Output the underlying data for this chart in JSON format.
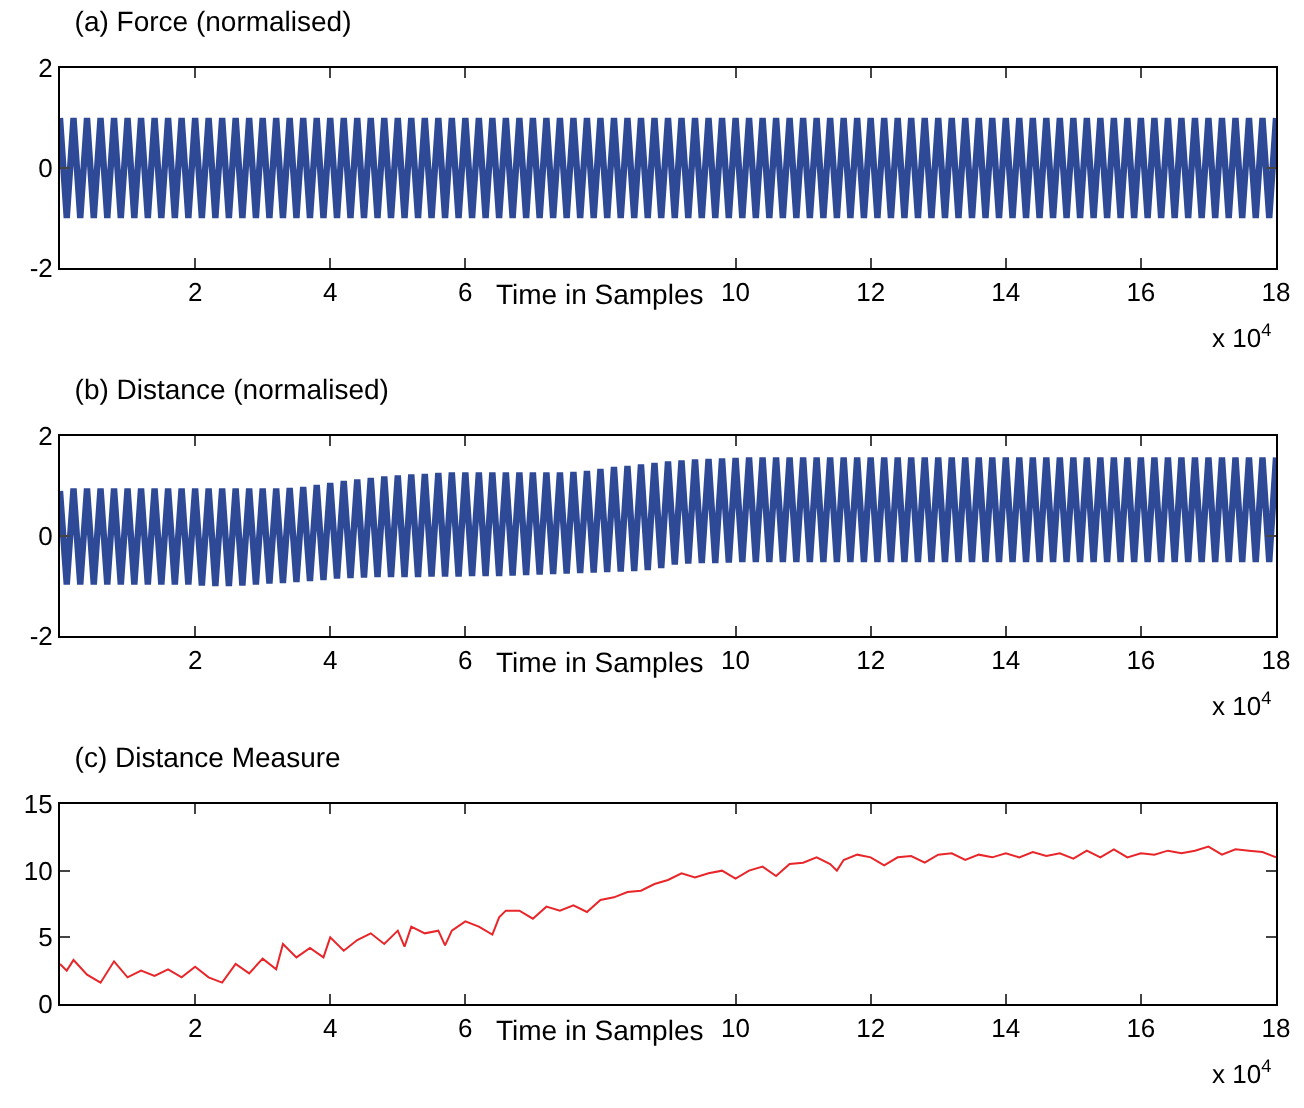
{
  "chart_data": [
    {
      "type": "line",
      "title": "(a) Force (normalised)",
      "xlabel": "Time in Samples",
      "xlim": [
        0,
        18
      ],
      "ylim": [
        -2,
        2
      ],
      "yticks": [
        -2,
        0,
        2
      ],
      "xticks": [
        2,
        4,
        6,
        10,
        12,
        14,
        16,
        18
      ],
      "annotations": [
        "x 10$^{4}$"
      ],
      "x": [
        0,
        0.1,
        0.2,
        0.3,
        0.4,
        0.5,
        0.6,
        0.7,
        0.8,
        0.9,
        1,
        1.1,
        1.2,
        1.3,
        1.4,
        1.5,
        1.6,
        1.7,
        1.8,
        1.9,
        2,
        2.1,
        2.2,
        2.3,
        2.4,
        2.5,
        2.6,
        2.7,
        2.8,
        2.9,
        3,
        3.1,
        3.2,
        3.3,
        3.4,
        3.5,
        3.6,
        3.7,
        3.8,
        3.9,
        4,
        4.1,
        4.2,
        4.3,
        4.4,
        4.5,
        4.6,
        4.7,
        4.8,
        4.9,
        5,
        5.1,
        5.2,
        5.3,
        5.4,
        5.5,
        5.6,
        5.7,
        5.8,
        5.9,
        6,
        6.1,
        6.2,
        6.3,
        6.4,
        6.5,
        6.6,
        6.7,
        6.8,
        6.9,
        7,
        7.1,
        7.2,
        7.3,
        7.4,
        7.5,
        7.6,
        7.7,
        7.8,
        7.9,
        8,
        8.1,
        8.2,
        8.3,
        8.4,
        8.5,
        8.6,
        8.7,
        8.8,
        8.9,
        9,
        9.1,
        9.2,
        9.3,
        9.4,
        9.5,
        9.6,
        9.7,
        9.8,
        9.9,
        10,
        10.1,
        10.2,
        10.3,
        10.4,
        10.5,
        10.6,
        10.7,
        10.8,
        10.9,
        11,
        11.1,
        11.2,
        11.3,
        11.4,
        11.5,
        11.6,
        11.7,
        11.8,
        11.9,
        12,
        12.1,
        12.2,
        12.3,
        12.4,
        12.5,
        12.6,
        12.7,
        12.8,
        12.9,
        13,
        13.1,
        13.2,
        13.3,
        13.4,
        13.5,
        13.6,
        13.7,
        13.8,
        13.9,
        14,
        14.1,
        14.2,
        14.3,
        14.4,
        14.5,
        14.6,
        14.7,
        14.8,
        14.9,
        15,
        15.1,
        15.2,
        15.3,
        15.4,
        15.5,
        15.6,
        15.7,
        15.8,
        15.9,
        16,
        16.1,
        16.2,
        16.3,
        16.4,
        16.5,
        16.6,
        16.7,
        16.8,
        16.9,
        17,
        17.1,
        17.2,
        17.3,
        17.4,
        17.5,
        17.6,
        17.7,
        17.8,
        17.9,
        18
      ],
      "series": [
        {
          "color": "#2e4a96",
          "values": [
            1,
            -1,
            1,
            -1,
            1,
            -1,
            1,
            -1,
            1,
            -1,
            1,
            -1,
            1,
            -1,
            1,
            -1,
            1,
            -1,
            1,
            -1,
            1,
            -1,
            1,
            -1,
            1,
            -1,
            1,
            -1,
            1,
            -1,
            1,
            -1,
            1,
            -1,
            1,
            -1,
            1,
            -1,
            1,
            -1,
            1,
            -1,
            1,
            -1,
            1,
            -1,
            1,
            -1,
            1,
            -1,
            1,
            -1,
            1,
            -1,
            1,
            -1,
            1,
            -1,
            1,
            -1,
            1,
            -1,
            1,
            -1,
            1,
            -1,
            1,
            -1,
            1,
            -1,
            1,
            -1,
            1,
            -1,
            1,
            -1,
            1,
            -1,
            1,
            -1,
            1,
            -1,
            1,
            -1,
            1,
            -1,
            1,
            -1,
            1,
            -1,
            1,
            -1,
            1,
            -1,
            1,
            -1,
            1,
            -1,
            1,
            -1,
            1,
            -1,
            1,
            -1,
            1,
            -1,
            1,
            -1,
            1,
            -1,
            1,
            -1,
            1,
            -1,
            1,
            -1,
            1,
            -1,
            1,
            -1,
            1,
            -1,
            1,
            -1,
            1,
            -1,
            1,
            -1,
            1,
            -1,
            1,
            -1,
            1,
            -1,
            1,
            -1,
            1,
            -1,
            1,
            -1,
            1,
            -1,
            1,
            -1,
            1,
            -1,
            1,
            -1,
            1,
            -1,
            1,
            -1,
            1,
            -1,
            1,
            -1,
            1,
            -1,
            1,
            -1,
            1,
            -1,
            1,
            -1,
            1,
            -1,
            1,
            -1,
            1,
            -1,
            1,
            -1,
            1,
            -1,
            1,
            -1,
            1,
            -1,
            1,
            -1,
            1
          ]
        }
      ]
    },
    {
      "type": "line",
      "title": "(b) Distance (normalised)",
      "xlabel": "Time in Samples",
      "xlim": [
        0,
        18
      ],
      "ylim": [
        -2,
        2
      ],
      "yticks": [
        -2,
        0,
        2
      ],
      "xticks": [
        2,
        4,
        6,
        10,
        12,
        14,
        16,
        18
      ],
      "annotations": [
        "x 10$^{4}$"
      ],
      "x": [
        0,
        0.1,
        0.2,
        0.3,
        0.4,
        0.5,
        0.6,
        0.7,
        0.8,
        0.9,
        1,
        1.1,
        1.2,
        1.3,
        1.4,
        1.5,
        1.6,
        1.7,
        1.8,
        1.9,
        2,
        2.1,
        2.2,
        2.3,
        2.4,
        2.5,
        2.6,
        2.7,
        2.8,
        2.9,
        3,
        3.1,
        3.2,
        3.3,
        3.4,
        3.5,
        3.6,
        3.7,
        3.8,
        3.9,
        4,
        4.1,
        4.2,
        4.3,
        4.4,
        4.5,
        4.6,
        4.7,
        4.8,
        4.9,
        5,
        5.1,
        5.2,
        5.3,
        5.4,
        5.5,
        5.6,
        5.7,
        5.8,
        5.9,
        6,
        6.1,
        6.2,
        6.3,
        6.4,
        6.5,
        6.6,
        6.7,
        6.8,
        6.9,
        7,
        7.1,
        7.2,
        7.3,
        7.4,
        7.5,
        7.6,
        7.7,
        7.8,
        7.9,
        8,
        8.1,
        8.2,
        8.3,
        8.4,
        8.5,
        8.6,
        8.7,
        8.8,
        8.9,
        9,
        9.1,
        9.2,
        9.3,
        9.4,
        9.5,
        9.6,
        9.7,
        9.8,
        9.9,
        10,
        10.1,
        10.2,
        10.3,
        10.4,
        10.5,
        10.6,
        10.7,
        10.8,
        10.9,
        11,
        11.1,
        11.2,
        11.3,
        11.4,
        11.5,
        11.6,
        11.7,
        11.8,
        11.9,
        12,
        12.1,
        12.2,
        12.3,
        12.4,
        12.5,
        12.6,
        12.7,
        12.8,
        12.9,
        13,
        13.1,
        13.2,
        13.3,
        13.4,
        13.5,
        13.6,
        13.7,
        13.8,
        13.9,
        14,
        14.1,
        14.2,
        14.3,
        14.4,
        14.5,
        14.6,
        14.7,
        14.8,
        14.9,
        15,
        15.1,
        15.2,
        15.3,
        15.4,
        15.5,
        15.6,
        15.7,
        15.8,
        15.9,
        16,
        16.1,
        16.2,
        16.3,
        16.4,
        16.5,
        16.6,
        16.7,
        16.8,
        16.9,
        17,
        17.1,
        17.2,
        17.3,
        17.4,
        17.5,
        17.6,
        17.7,
        17.8,
        17.9,
        18
      ],
      "series": [
        {
          "color": "#2e4a96",
          "values": [
            0.9,
            -0.97,
            0.95,
            -0.97,
            0.95,
            -0.97,
            0.95,
            -0.97,
            0.95,
            -0.97,
            0.95,
            -0.97,
            0.95,
            -0.97,
            0.95,
            -0.97,
            0.95,
            -0.97,
            0.95,
            -0.97,
            0.95,
            -0.99,
            0.95,
            -1.0,
            0.95,
            -1.0,
            0.95,
            -0.99,
            0.95,
            -0.97,
            0.95,
            -0.95,
            0.95,
            -0.94,
            0.96,
            -0.92,
            0.98,
            -0.9,
            1.02,
            -0.88,
            1.06,
            -0.85,
            1.1,
            -0.84,
            1.13,
            -0.83,
            1.16,
            -0.82,
            1.19,
            -0.82,
            1.21,
            -0.82,
            1.23,
            -0.82,
            1.24,
            -0.81,
            1.26,
            -0.81,
            1.27,
            -0.81,
            1.27,
            -0.8,
            1.27,
            -0.8,
            1.27,
            -0.8,
            1.27,
            -0.79,
            1.27,
            -0.78,
            1.27,
            -0.77,
            1.27,
            -0.76,
            1.27,
            -0.75,
            1.28,
            -0.74,
            1.3,
            -0.73,
            1.34,
            -0.72,
            1.38,
            -0.71,
            1.4,
            -0.7,
            1.43,
            -0.68,
            1.46,
            -0.64,
            1.49,
            -0.57,
            1.51,
            -0.55,
            1.53,
            -0.54,
            1.54,
            -0.54,
            1.55,
            -0.53,
            1.56,
            -0.52,
            1.57,
            -0.52,
            1.57,
            -0.52,
            1.57,
            -0.52,
            1.57,
            -0.52,
            1.57,
            -0.52,
            1.57,
            -0.52,
            1.57,
            -0.52,
            1.57,
            -0.52,
            1.57,
            -0.52,
            1.57,
            -0.52,
            1.57,
            -0.52,
            1.57,
            -0.52,
            1.57,
            -0.52,
            1.57,
            -0.52,
            1.57,
            -0.52,
            1.57,
            -0.52,
            1.57,
            -0.52,
            1.57,
            -0.52,
            1.57,
            -0.52,
            1.57,
            -0.52,
            1.57,
            -0.52,
            1.57,
            -0.52,
            1.57,
            -0.52,
            1.57,
            -0.52,
            1.57,
            -0.52,
            1.57,
            -0.52,
            1.57,
            -0.52,
            1.57,
            -0.52,
            1.57,
            -0.52,
            1.57,
            -0.52,
            1.57,
            -0.52,
            1.57,
            -0.52,
            1.57,
            -0.52,
            1.57,
            -0.52,
            1.57,
            -0.52,
            1.57,
            -0.52,
            1.57,
            -0.52,
            1.57,
            -0.52,
            1.57,
            -0.52,
            1.57
          ]
        }
      ]
    },
    {
      "type": "line",
      "title": "(c) Distance Measure",
      "xlabel": "Time in Samples",
      "xlim": [
        0,
        18
      ],
      "ylim": [
        0,
        15
      ],
      "yticks": [
        0,
        5,
        10,
        15
      ],
      "xticks": [
        2,
        4,
        6,
        10,
        12,
        14,
        16,
        18
      ],
      "annotations": [
        "x 10$^{4}$"
      ],
      "x": [
        0,
        0.1,
        0.2,
        0.4,
        0.6,
        0.8,
        1.0,
        1.2,
        1.4,
        1.6,
        1.8,
        2.0,
        2.2,
        2.4,
        2.6,
        2.8,
        3.0,
        3.2,
        3.3,
        3.5,
        3.7,
        3.9,
        4.0,
        4.2,
        4.4,
        4.6,
        4.8,
        5.0,
        5.1,
        5.2,
        5.4,
        5.6,
        5.7,
        5.8,
        6.0,
        6.2,
        6.4,
        6.5,
        6.6,
        6.8,
        7.0,
        7.2,
        7.4,
        7.6,
        7.8,
        8.0,
        8.2,
        8.4,
        8.6,
        8.8,
        9.0,
        9.2,
        9.4,
        9.6,
        9.8,
        10.0,
        10.2,
        10.4,
        10.6,
        10.8,
        11.0,
        11.2,
        11.4,
        11.5,
        11.6,
        11.8,
        12.0,
        12.2,
        12.4,
        12.6,
        12.8,
        13.0,
        13.2,
        13.4,
        13.6,
        13.8,
        14.0,
        14.2,
        14.4,
        14.6,
        14.8,
        15.0,
        15.2,
        15.4,
        15.6,
        15.8,
        16.0,
        16.2,
        16.4,
        16.6,
        16.8,
        17.0,
        17.2,
        17.4,
        17.6,
        17.8,
        18.0
      ],
      "series": [
        {
          "color": "#e8262a",
          "values": [
            3.0,
            2.5,
            3.3,
            2.2,
            1.6,
            3.2,
            2.0,
            2.5,
            2.1,
            2.6,
            2.0,
            2.8,
            2.0,
            1.6,
            3.0,
            2.3,
            3.4,
            2.6,
            4.5,
            3.5,
            4.2,
            3.5,
            5.0,
            4.0,
            4.8,
            5.3,
            4.5,
            5.5,
            4.3,
            5.8,
            5.3,
            5.5,
            4.4,
            5.5,
            6.2,
            5.8,
            5.2,
            6.5,
            7.0,
            7.0,
            6.4,
            7.3,
            7.0,
            7.4,
            6.9,
            7.8,
            8.0,
            8.4,
            8.5,
            9.0,
            9.3,
            9.8,
            9.5,
            9.8,
            10.0,
            9.4,
            10.0,
            10.3,
            9.6,
            10.5,
            10.6,
            11.0,
            10.5,
            10.0,
            10.8,
            11.2,
            11.0,
            10.4,
            11.0,
            11.1,
            10.6,
            11.2,
            11.3,
            10.8,
            11.2,
            11.0,
            11.3,
            11.0,
            11.4,
            11.1,
            11.3,
            10.9,
            11.5,
            11.0,
            11.6,
            11.0,
            11.3,
            11.2,
            11.5,
            11.3,
            11.5,
            11.8,
            11.2,
            11.6,
            11.5,
            11.4,
            11.0
          ]
        }
      ]
    }
  ]
}
